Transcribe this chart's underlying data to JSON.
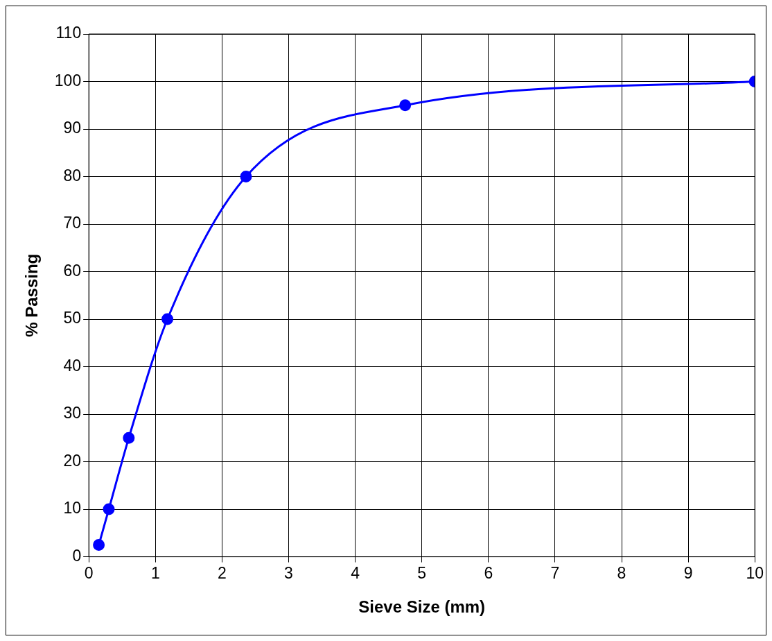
{
  "chart_data": {
    "type": "line",
    "xlabel": "Sieve Size (mm)",
    "ylabel": "% Passing",
    "x": [
      0.15,
      0.3,
      0.6,
      1.18,
      2.36,
      4.75,
      10
    ],
    "series": [
      {
        "color": "#0000ff",
        "values": [
          2.5,
          10,
          25,
          50,
          80,
          95,
          100
        ]
      }
    ],
    "xlim": [
      0,
      10
    ],
    "xticks": [
      0,
      1,
      2,
      3,
      4,
      5,
      6,
      7,
      8,
      9,
      10
    ],
    "ylim": [
      0,
      110
    ],
    "yticks": [
      0,
      10,
      20,
      30,
      40,
      50,
      60,
      70,
      80,
      90,
      100,
      110
    ],
    "grid": true,
    "marker": "circle",
    "line_style": "solid"
  }
}
